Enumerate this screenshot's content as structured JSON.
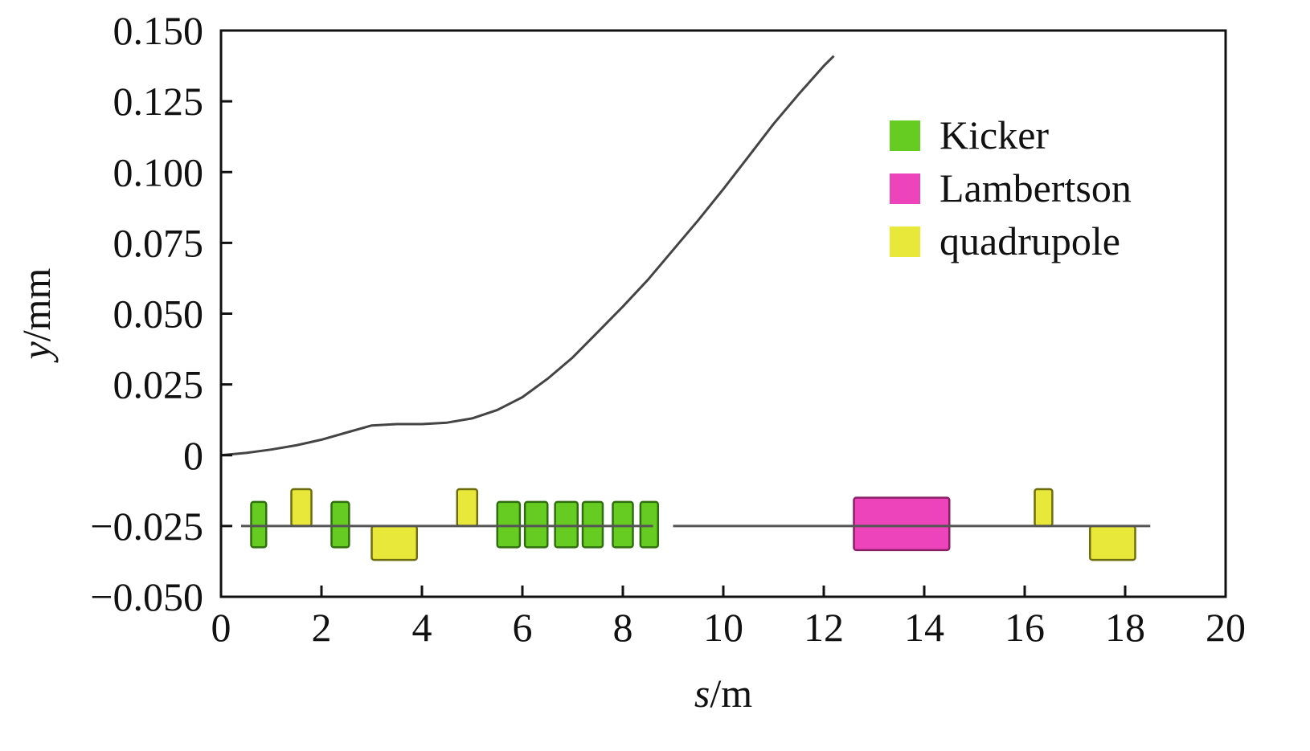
{
  "chart_data": {
    "type": "line",
    "title": "",
    "xlabel_var": "s",
    "xlabel_unit": "/m",
    "ylabel_var": "y",
    "ylabel_unit": "/mm",
    "xlim": [
      0,
      20
    ],
    "ylim": [
      -0.05,
      0.15
    ],
    "x_ticks": [
      0,
      2,
      4,
      6,
      8,
      10,
      12,
      14,
      16,
      18,
      20
    ],
    "x_tick_labels": [
      "0",
      "2",
      "4",
      "6",
      "8",
      "10",
      "12",
      "14",
      "16",
      "18",
      "20"
    ],
    "y_ticks": [
      0.15,
      0.125,
      0.1,
      0.075,
      0.05,
      0.025,
      0,
      -0.025,
      -0.05
    ],
    "y_tick_labels": [
      "0.150",
      "0.125",
      "0.100",
      "0.075",
      "0.050",
      "0.025",
      "0",
      "−0.025",
      "−0.050"
    ],
    "grid": false,
    "legend_position": "top-right",
    "legend": [
      {
        "label": "Kicker",
        "color": "#66cc22"
      },
      {
        "label": "Lambertson",
        "color": "#ee44bb"
      },
      {
        "label": "quadrupole",
        "color": "#e8e83a"
      }
    ],
    "series": [
      {
        "color": "#444444",
        "x": [
          0,
          0.5,
          1.0,
          1.5,
          2.0,
          2.5,
          3.0,
          3.5,
          4.0,
          4.5,
          5.0,
          5.5,
          6.0,
          6.5,
          7.0,
          7.5,
          8.0,
          8.5,
          9.0,
          9.5,
          10.0,
          10.5,
          11.0,
          11.5,
          12.0,
          12.2
        ],
        "y": [
          0,
          0.0008,
          0.002,
          0.0035,
          0.0055,
          0.008,
          0.0105,
          0.011,
          0.011,
          0.0115,
          0.013,
          0.016,
          0.0205,
          0.027,
          0.0345,
          0.0435,
          0.0525,
          0.062,
          0.0725,
          0.083,
          0.094,
          0.1055,
          0.117,
          0.1275,
          0.1375,
          0.141
        ]
      }
    ],
    "baseline_y": -0.025,
    "baseline_segments": [
      [
        0.4,
        8.6
      ],
      [
        9.0,
        18.5
      ]
    ],
    "elements": [
      {
        "type": "Kicker",
        "s0": 0.6,
        "s1": 0.9,
        "y0": -0.0325,
        "y1": -0.0165
      },
      {
        "type": "quadrupole",
        "s0": 1.4,
        "s1": 1.8,
        "y0": -0.025,
        "y1": -0.012
      },
      {
        "type": "Kicker",
        "s0": 2.2,
        "s1": 2.55,
        "y0": -0.0325,
        "y1": -0.0165
      },
      {
        "type": "quadrupole",
        "s0": 3.0,
        "s1": 3.9,
        "y0": -0.037,
        "y1": -0.025
      },
      {
        "type": "quadrupole",
        "s0": 4.7,
        "s1": 5.1,
        "y0": -0.025,
        "y1": -0.012
      },
      {
        "type": "Kicker",
        "s0": 5.5,
        "s1": 5.95,
        "y0": -0.0325,
        "y1": -0.0165
      },
      {
        "type": "Kicker",
        "s0": 6.05,
        "s1": 6.5,
        "y0": -0.0325,
        "y1": -0.0165
      },
      {
        "type": "Kicker",
        "s0": 6.65,
        "s1": 7.1,
        "y0": -0.0325,
        "y1": -0.0165
      },
      {
        "type": "Kicker",
        "s0": 7.2,
        "s1": 7.6,
        "y0": -0.0325,
        "y1": -0.0165
      },
      {
        "type": "Kicker",
        "s0": 7.8,
        "s1": 8.2,
        "y0": -0.0325,
        "y1": -0.0165
      },
      {
        "type": "Kicker",
        "s0": 8.35,
        "s1": 8.7,
        "y0": -0.0325,
        "y1": -0.0165
      },
      {
        "type": "Lambertson",
        "s0": 12.6,
        "s1": 14.5,
        "y0": -0.0335,
        "y1": -0.015
      },
      {
        "type": "quadrupole",
        "s0": 16.2,
        "s1": 16.55,
        "y0": -0.025,
        "y1": -0.012
      },
      {
        "type": "quadrupole",
        "s0": 17.3,
        "s1": 18.2,
        "y0": -0.037,
        "y1": -0.025
      }
    ]
  }
}
